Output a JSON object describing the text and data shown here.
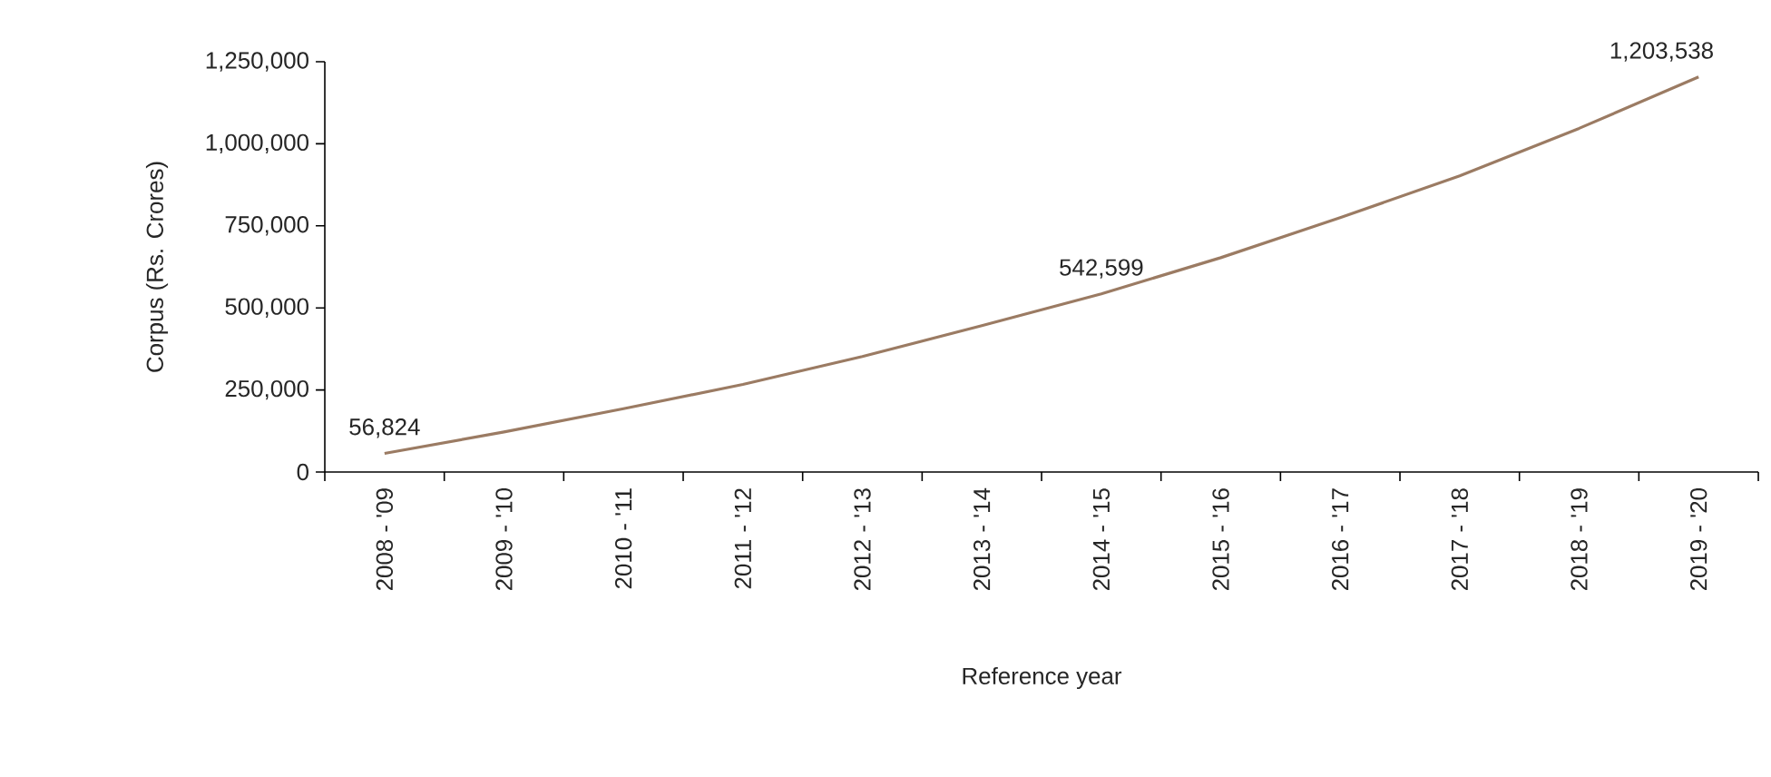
{
  "chart_data": {
    "type": "line",
    "xlabel": "Reference year",
    "ylabel": "Corpus (Rs. Crores)",
    "categories": [
      "2008 - '09",
      "2009 - '10",
      "2010 - '11",
      "2011 - '12",
      "2012 - '13",
      "2013 - '14",
      "2014 - '15",
      "2015 - '16",
      "2016 - '17",
      "2017 - '18",
      "2018 - '19",
      "2019 - '20"
    ],
    "series": [
      {
        "color": "#9b7b63",
        "values": [
          56824,
          122000,
          193000,
          267000,
          352000,
          446000,
          542599,
          653000,
          775000,
          902000,
          1047000,
          1203538
        ],
        "value_labels": [
          "56,824",
          null,
          null,
          null,
          null,
          null,
          "542,599",
          null,
          null,
          null,
          null,
          "1,203,538"
        ]
      }
    ],
    "ylim": [
      0,
      1250000
    ],
    "yticks": [
      {
        "value": 0,
        "label": "0"
      },
      {
        "value": 250000,
        "label": "250,000"
      },
      {
        "value": 500000,
        "label": "500,000"
      },
      {
        "value": 750000,
        "label": "750,000"
      },
      {
        "value": 1000000,
        "label": "1,000,000"
      },
      {
        "value": 1250000,
        "label": "1,250,000"
      }
    ],
    "grid": false,
    "marker": "none",
    "line_style": "solid"
  }
}
